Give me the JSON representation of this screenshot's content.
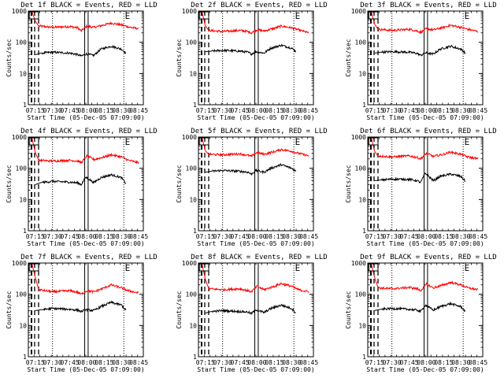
{
  "figure_title": "",
  "chart_data": [
    {
      "type": "line",
      "title": "Det 1f BLACK = Events, RED = LLD",
      "xlabel": "Start Time (05-Dec-05 07:09:00)",
      "ylabel": "Counts/sec",
      "ylog": true,
      "ylim": [
        1,
        1000
      ],
      "xlim": [
        "07:09",
        "08:49"
      ],
      "xticks": [
        "07:15",
        "07:30",
        "07:45",
        "08:00",
        "08:15",
        "08:30",
        "08:45"
      ],
      "yticks": [
        "1",
        "10",
        "100",
        "1000"
      ],
      "markers": [
        {
          "label": "E",
          "x": "08:33"
        }
      ],
      "series": [
        {
          "color": "#ff0000",
          "x": [
            "07:12",
            "07:15",
            "07:18",
            "07:30",
            "07:45",
            "07:52",
            "07:55",
            "08:00",
            "08:06",
            "08:15",
            "08:21",
            "08:30",
            "08:36",
            "08:45"
          ],
          "y": [
            1000,
            480,
            330,
            300,
            320,
            290,
            230,
            330,
            300,
            360,
            410,
            360,
            310,
            270
          ]
        },
        {
          "color": "#000000",
          "x": [
            "07:15",
            "07:20",
            "07:30",
            "07:45",
            "07:52",
            "07:55",
            "07:59",
            "08:06",
            "08:12",
            "08:21",
            "08:30",
            "08:34"
          ],
          "y": [
            40,
            45,
            48,
            45,
            40,
            36,
            42,
            38,
            60,
            75,
            60,
            45
          ]
        }
      ]
    },
    {
      "type": "line",
      "title": "Det 2f BLACK = Events, RED = LLD",
      "xlabel": "Start Time (05-Dec-05 07:09:00)",
      "ylabel": "Counts/sec",
      "ylog": true,
      "ylim": [
        1,
        1000
      ],
      "xlim": [
        "07:09",
        "08:49"
      ],
      "xticks": [
        "07:15",
        "07:30",
        "07:45",
        "08:00",
        "08:15",
        "08:30",
        "08:45"
      ],
      "yticks": [
        "1",
        "10",
        "100",
        "1000"
      ],
      "markers": [
        {
          "label": "E",
          "x": "08:33"
        }
      ],
      "series": [
        {
          "color": "#ff0000",
          "x": [
            "07:12",
            "07:15",
            "07:18",
            "07:30",
            "07:45",
            "07:52",
            "07:55",
            "08:00",
            "08:06",
            "08:15",
            "08:21",
            "08:30",
            "08:36",
            "08:45"
          ],
          "y": [
            1000,
            330,
            240,
            220,
            240,
            220,
            200,
            250,
            230,
            280,
            330,
            290,
            250,
            200
          ]
        },
        {
          "color": "#000000",
          "x": [
            "07:15",
            "07:20",
            "07:30",
            "07:45",
            "07:52",
            "07:55",
            "07:59",
            "08:06",
            "08:12",
            "08:21",
            "08:30",
            "08:34"
          ],
          "y": [
            50,
            52,
            55,
            52,
            48,
            42,
            50,
            45,
            65,
            80,
            65,
            50
          ]
        }
      ]
    },
    {
      "type": "line",
      "title": "Det 3f BLACK = Events, RED = LLD",
      "xlabel": "Start Time (05-Dec-05 07:09:00)",
      "ylabel": "Counts/sec",
      "ylog": true,
      "ylim": [
        1,
        1000
      ],
      "xlim": [
        "07:09",
        "08:49"
      ],
      "xticks": [
        "07:15",
        "07:30",
        "07:45",
        "08:00",
        "08:15",
        "08:30",
        "08:45"
      ],
      "yticks": [
        "1",
        "10",
        "100",
        "1000"
      ],
      "markers": [
        {
          "label": "E",
          "x": "08:33"
        }
      ],
      "series": [
        {
          "color": "#ff0000",
          "x": [
            "07:12",
            "07:15",
            "07:18",
            "07:30",
            "07:45",
            "07:52",
            "07:55",
            "08:00",
            "08:06",
            "08:15",
            "08:21",
            "08:30",
            "08:36",
            "08:45"
          ],
          "y": [
            1000,
            380,
            260,
            240,
            260,
            230,
            210,
            270,
            250,
            300,
            350,
            300,
            260,
            220
          ]
        },
        {
          "color": "#000000",
          "x": [
            "07:15",
            "07:20",
            "07:30",
            "07:45",
            "07:52",
            "07:55",
            "07:59",
            "08:06",
            "08:12",
            "08:21",
            "08:30",
            "08:34"
          ],
          "y": [
            45,
            48,
            50,
            48,
            44,
            38,
            46,
            42,
            60,
            75,
            60,
            45
          ]
        }
      ]
    },
    {
      "type": "line",
      "title": "Det 4f BLACK = Events, RED = LLD",
      "xlabel": "Start Time (05-Dec-05 07:09:00)",
      "ylabel": "Counts/sec",
      "ylog": true,
      "ylim": [
        1,
        1000
      ],
      "xlim": [
        "07:09",
        "08:49"
      ],
      "xticks": [
        "07:15",
        "07:30",
        "07:45",
        "08:00",
        "08:15",
        "08:30",
        "08:45"
      ],
      "yticks": [
        "1",
        "10",
        "100",
        "1000"
      ],
      "markers": [
        {
          "label": "E",
          "x": "08:33"
        }
      ],
      "series": [
        {
          "color": "#ff0000",
          "x": [
            "07:12",
            "07:15",
            "07:18",
            "07:30",
            "07:45",
            "07:52",
            "07:55",
            "08:00",
            "08:06",
            "08:15",
            "08:21",
            "08:30",
            "08:36",
            "08:45"
          ],
          "y": [
            1000,
            320,
            180,
            170,
            180,
            170,
            150,
            250,
            190,
            230,
            270,
            230,
            180,
            150
          ]
        },
        {
          "color": "#000000",
          "x": [
            "07:15",
            "07:20",
            "07:30",
            "07:45",
            "07:52",
            "07:55",
            "07:59",
            "08:06",
            "08:12",
            "08:21",
            "08:30",
            "08:34"
          ],
          "y": [
            30,
            35,
            38,
            36,
            34,
            30,
            52,
            35,
            50,
            62,
            50,
            32
          ]
        }
      ]
    },
    {
      "type": "line",
      "title": "Det 5f BLACK = Events, RED = LLD",
      "xlabel": "Start Time (05-Dec-05 07:09:00)",
      "ylabel": "Counts/sec",
      "ylog": true,
      "ylim": [
        1,
        1000
      ],
      "xlim": [
        "07:09",
        "08:49"
      ],
      "xticks": [
        "07:15",
        "07:30",
        "07:45",
        "08:00",
        "08:15",
        "08:30",
        "08:45"
      ],
      "yticks": [
        "1",
        "10",
        "100",
        "1000"
      ],
      "markers": [
        {
          "label": "E",
          "x": "08:33"
        }
      ],
      "series": [
        {
          "color": "#ff0000",
          "x": [
            "07:12",
            "07:15",
            "07:18",
            "07:30",
            "07:45",
            "07:52",
            "07:55",
            "08:00",
            "08:06",
            "08:15",
            "08:21",
            "08:30",
            "08:36",
            "08:45"
          ],
          "y": [
            1000,
            360,
            280,
            270,
            290,
            260,
            240,
            320,
            280,
            340,
            400,
            350,
            300,
            250
          ]
        },
        {
          "color": "#000000",
          "x": [
            "07:15",
            "07:20",
            "07:30",
            "07:45",
            "07:52",
            "07:55",
            "07:59",
            "08:06",
            "08:12",
            "08:21",
            "08:30",
            "08:34"
          ],
          "y": [
            75,
            80,
            85,
            80,
            75,
            65,
            85,
            75,
            100,
            130,
            100,
            80
          ]
        }
      ]
    },
    {
      "type": "line",
      "title": "Det 6f BLACK = Events, RED = LLD",
      "xlabel": "Start Time (05-Dec-05 07:09:00)",
      "ylabel": "Counts/sec",
      "ylog": true,
      "ylim": [
        1,
        1000
      ],
      "xlim": [
        "07:09",
        "08:49"
      ],
      "xticks": [
        "07:15",
        "07:30",
        "07:45",
        "08:00",
        "08:15",
        "08:30",
        "08:45"
      ],
      "yticks": [
        "1",
        "10",
        "100",
        "1000"
      ],
      "markers": [
        {
          "label": "E",
          "x": "08:33"
        }
      ],
      "series": [
        {
          "color": "#ff0000",
          "x": [
            "07:12",
            "07:15",
            "07:18",
            "07:30",
            "07:45",
            "07:52",
            "07:55",
            "08:00",
            "08:06",
            "08:15",
            "08:21",
            "08:30",
            "08:36",
            "08:45"
          ],
          "y": [
            1000,
            340,
            250,
            230,
            250,
            220,
            200,
            300,
            240,
            280,
            330,
            280,
            230,
            200
          ]
        },
        {
          "color": "#000000",
          "x": [
            "07:15",
            "07:20",
            "07:30",
            "07:45",
            "07:52",
            "07:55",
            "07:59",
            "08:06",
            "08:12",
            "08:21",
            "08:30",
            "08:34"
          ],
          "y": [
            40,
            42,
            45,
            44,
            40,
            35,
            70,
            40,
            55,
            65,
            55,
            38
          ]
        }
      ]
    },
    {
      "type": "line",
      "title": "Det 7f BLACK = Events, RED = LLD",
      "xlabel": "Start Time (05-Dec-05 07:09:00)",
      "ylabel": "Counts/sec",
      "ylog": true,
      "ylim": [
        1,
        1000
      ],
      "xlim": [
        "07:09",
        "08:49"
      ],
      "xticks": [
        "07:15",
        "07:30",
        "07:45",
        "08:00",
        "08:15",
        "08:30",
        "08:45"
      ],
      "yticks": [
        "1",
        "10",
        "100",
        "1000"
      ],
      "markers": [
        {
          "label": "E",
          "x": "08:33"
        }
      ],
      "series": [
        {
          "color": "#ff0000",
          "x": [
            "07:12",
            "07:15",
            "07:18",
            "07:30",
            "07:45",
            "07:52",
            "07:55",
            "08:00",
            "08:06",
            "08:15",
            "08:21",
            "08:30",
            "08:36",
            "08:45"
          ],
          "y": [
            1000,
            350,
            140,
            120,
            130,
            115,
            100,
            130,
            120,
            160,
            200,
            160,
            130,
            110
          ]
        },
        {
          "color": "#000000",
          "x": [
            "07:15",
            "07:20",
            "07:30",
            "07:45",
            "07:52",
            "07:55",
            "07:59",
            "08:06",
            "08:12",
            "08:21",
            "08:30",
            "08:34"
          ],
          "y": [
            30,
            32,
            35,
            33,
            31,
            28,
            32,
            30,
            40,
            55,
            45,
            30
          ]
        }
      ]
    },
    {
      "type": "line",
      "title": "Det 8f BLACK = Events, RED = LLD",
      "xlabel": "Start Time (05-Dec-05 07:09:00)",
      "ylabel": "Counts/sec",
      "ylog": true,
      "ylim": [
        1,
        1000
      ],
      "xlim": [
        "07:09",
        "08:49"
      ],
      "xticks": [
        "07:15",
        "07:30",
        "07:45",
        "08:00",
        "08:15",
        "08:30",
        "08:45"
      ],
      "yticks": [
        "1",
        "10",
        "100",
        "1000"
      ],
      "markers": [
        {
          "label": "E",
          "x": "08:33"
        }
      ],
      "series": [
        {
          "color": "#ff0000",
          "x": [
            "07:12",
            "07:15",
            "07:18",
            "07:30",
            "07:45",
            "07:52",
            "07:55",
            "08:00",
            "08:06",
            "08:15",
            "08:21",
            "08:30",
            "08:36",
            "08:45"
          ],
          "y": [
            1000,
            300,
            150,
            140,
            150,
            130,
            120,
            180,
            140,
            180,
            220,
            180,
            140,
            120
          ]
        },
        {
          "color": "#000000",
          "x": [
            "07:15",
            "07:20",
            "07:30",
            "07:45",
            "07:52",
            "07:55",
            "07:59",
            "08:06",
            "08:12",
            "08:21",
            "08:30",
            "08:34"
          ],
          "y": [
            25,
            28,
            30,
            28,
            27,
            24,
            32,
            26,
            35,
            45,
            35,
            25
          ]
        }
      ]
    },
    {
      "type": "line",
      "title": "Det 9f BLACK = Events, RED = LLD",
      "xlabel": "Start Time (05-Dec-05 07:09:00)",
      "ylabel": "Counts/sec",
      "ylog": true,
      "ylim": [
        1,
        1000
      ],
      "xlim": [
        "07:09",
        "08:49"
      ],
      "xticks": [
        "07:15",
        "07:30",
        "07:45",
        "08:00",
        "08:15",
        "08:30",
        "08:45"
      ],
      "yticks": [
        "1",
        "10",
        "100",
        "1000"
      ],
      "markers": [
        {
          "label": "E",
          "x": "08:33"
        }
      ],
      "series": [
        {
          "color": "#ff0000",
          "x": [
            "07:12",
            "07:15",
            "07:18",
            "07:30",
            "07:45",
            "07:52",
            "07:55",
            "08:00",
            "08:06",
            "08:15",
            "08:21",
            "08:30",
            "08:36",
            "08:45"
          ],
          "y": [
            1000,
            330,
            160,
            150,
            165,
            150,
            130,
            210,
            160,
            200,
            240,
            200,
            160,
            140
          ]
        },
        {
          "color": "#000000",
          "x": [
            "07:15",
            "07:20",
            "07:30",
            "07:45",
            "07:52",
            "07:55",
            "07:59",
            "08:06",
            "08:12",
            "08:21",
            "08:30",
            "08:34"
          ],
          "y": [
            30,
            33,
            35,
            33,
            31,
            28,
            45,
            31,
            40,
            50,
            40,
            28
          ]
        }
      ]
    }
  ]
}
